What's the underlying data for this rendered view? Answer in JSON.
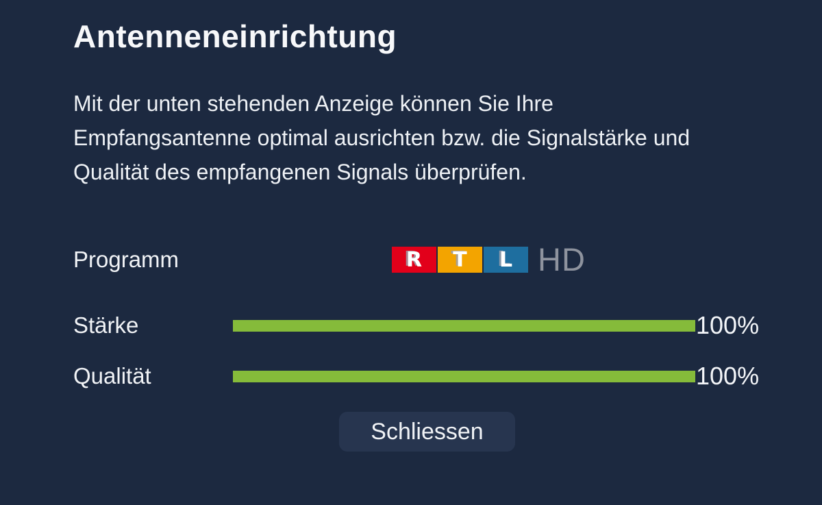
{
  "page": {
    "title": "Antenneneinrichtung",
    "description": "Mit der unten stehenden Anzeige können Sie Ihre Empfangsantenne optimal ausrichten bzw. die Signalstärke und Qualität des empfangenen Signals überprüfen."
  },
  "program": {
    "label": "Programm",
    "channel_name": "RTL HD",
    "logo": {
      "letters": [
        "R",
        "T",
        "L"
      ],
      "block_colors": [
        "#e2001a",
        "#f3a400",
        "#1e6e9f"
      ],
      "suffix": "HD",
      "suffix_color": "#8e939e"
    }
  },
  "meters": [
    {
      "label": "Stärke",
      "value_percent": 100,
      "value_label": "100%"
    },
    {
      "label": "Qualität",
      "value_percent": 100,
      "value_label": "100%"
    }
  ],
  "actions": {
    "close_label": "Schliessen"
  },
  "colors": {
    "background": "#1c2940",
    "text": "#f3f5f8",
    "meter_green": "#85bb3a",
    "button_background": "#27354f"
  }
}
